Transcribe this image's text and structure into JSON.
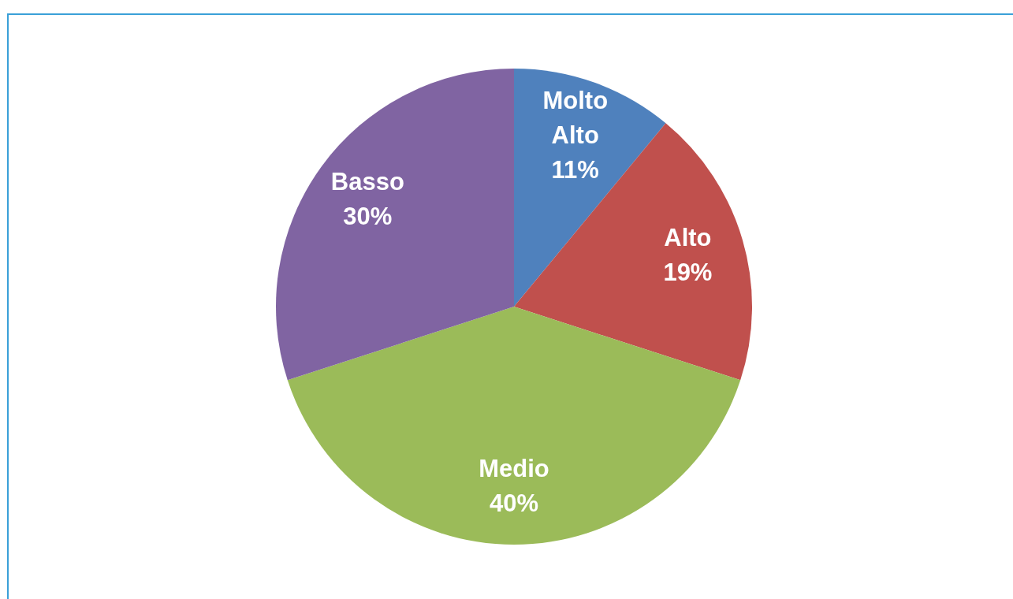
{
  "chart_data": {
    "type": "pie",
    "categories": [
      "Molto Alto",
      "Alto",
      "Medio",
      "Basso"
    ],
    "values": [
      11,
      19,
      40,
      30
    ],
    "colors": [
      "#4f81bd",
      "#c0504d",
      "#9bbb59",
      "#8064a2"
    ],
    "value_labels": [
      "11%",
      "19%",
      "40%",
      "30%"
    ],
    "legend": false
  }
}
